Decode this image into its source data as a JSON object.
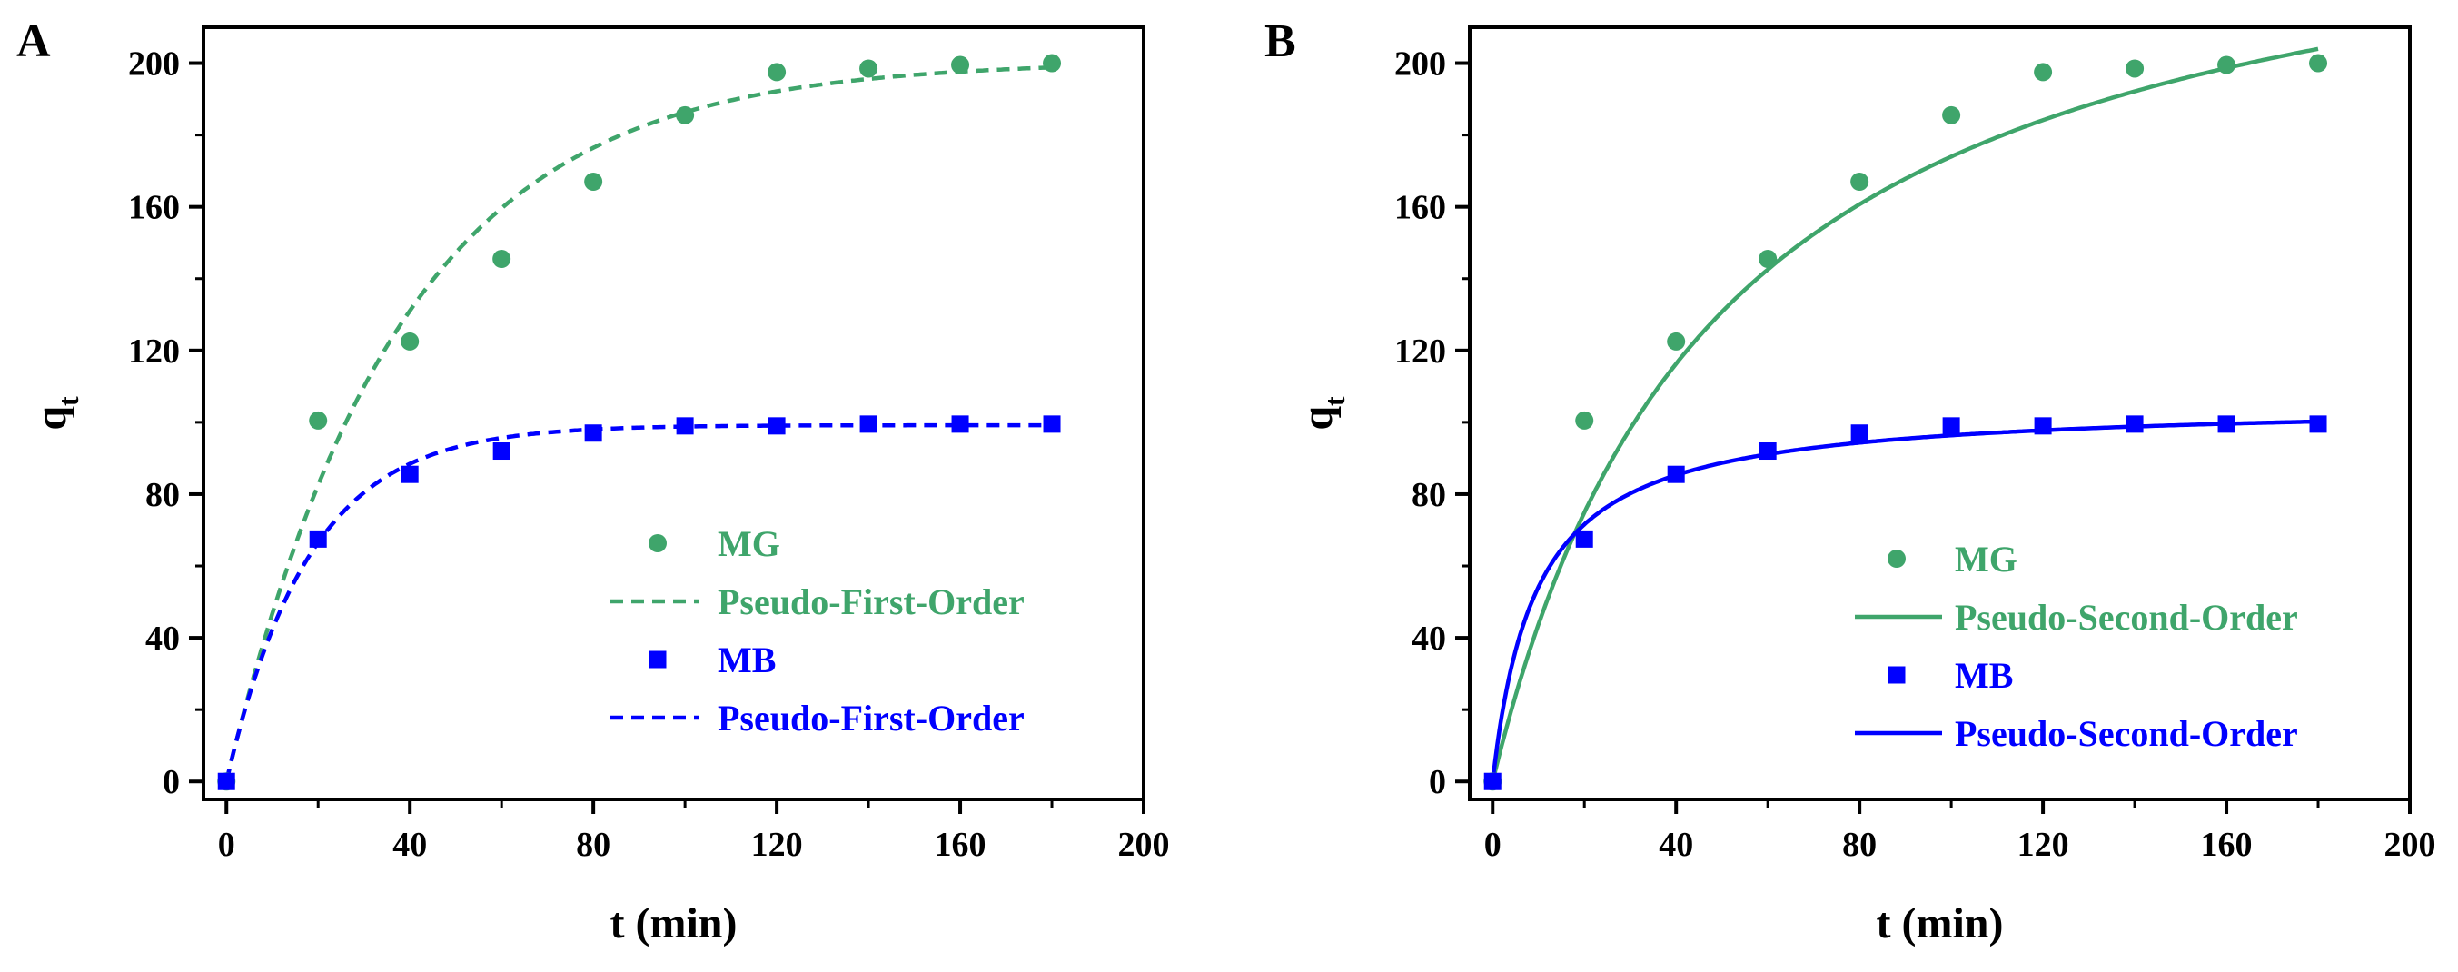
{
  "figure": {
    "panels": [
      "A",
      "B"
    ]
  },
  "chart_data": [
    {
      "panel": "A",
      "type": "scatter",
      "xlabel": "t (min)",
      "ylabel": "q",
      "ylabel_subscript": "t",
      "xlim": [
        -5,
        200
      ],
      "ylim": [
        -5,
        210
      ],
      "xticks": [
        0,
        40,
        80,
        120,
        160,
        200
      ],
      "yticks": [
        0,
        40,
        80,
        120,
        160,
        200
      ],
      "grid": false,
      "legend_position": "center-right",
      "series": [
        {
          "name": "MG",
          "kind": "points",
          "marker": "circle",
          "color": "#3fa56b",
          "x": [
            0,
            20,
            40,
            60,
            80,
            100,
            120,
            140,
            160,
            180
          ],
          "y": [
            0,
            100.5,
            122.5,
            145.5,
            167,
            185.5,
            197.5,
            198.5,
            199.5,
            200
          ]
        },
        {
          "name": "Pseudo-First-Order",
          "kind": "fit",
          "model": "first-order",
          "qe": 200.5,
          "k": 0.0265,
          "dash": "dashed",
          "color": "#3fa56b"
        },
        {
          "name": "MB",
          "kind": "points",
          "marker": "square",
          "color": "#0000ff",
          "x": [
            0,
            20,
            40,
            60,
            80,
            100,
            120,
            140,
            160,
            180
          ],
          "y": [
            0,
            67.5,
            85.5,
            92,
            97,
            99,
            99,
            99.5,
            99.5,
            99.5
          ]
        },
        {
          "name": "Pseudo-First-Order",
          "kind": "fit",
          "model": "first-order",
          "qe": 99.2,
          "k": 0.0555,
          "dash": "dashed",
          "color": "#0000ff"
        }
      ]
    },
    {
      "panel": "B",
      "type": "scatter",
      "xlabel": "t (min)",
      "ylabel": "q",
      "ylabel_subscript": "t",
      "xlim": [
        -5,
        200
      ],
      "ylim": [
        -5,
        210
      ],
      "xticks": [
        0,
        40,
        80,
        120,
        160,
        200
      ],
      "yticks": [
        0,
        40,
        80,
        120,
        160,
        200
      ],
      "grid": false,
      "legend_position": "center-right",
      "series": [
        {
          "name": "MG",
          "kind": "points",
          "marker": "circle",
          "color": "#3fa56b",
          "x": [
            0,
            20,
            40,
            60,
            80,
            100,
            120,
            140,
            160,
            180
          ],
          "y": [
            0,
            100.5,
            122.5,
            145.5,
            167,
            185.5,
            197.5,
            198.5,
            199.5,
            200
          ]
        },
        {
          "name": "Pseudo-Second-Order",
          "kind": "fit",
          "model": "second-order",
          "qe": 260,
          "k": 7.78e-05,
          "dash": "solid",
          "color": "#3fa56b"
        },
        {
          "name": "MB",
          "kind": "points",
          "marker": "square",
          "color": "#0000ff",
          "x": [
            0,
            20,
            40,
            60,
            80,
            100,
            120,
            140,
            160,
            180
          ],
          "y": [
            0,
            67.5,
            85.5,
            92,
            97,
            99,
            99,
            99.5,
            99.5,
            99.5
          ]
        },
        {
          "name": "Pseudo-Second-Order",
          "kind": "fit",
          "model": "second-order",
          "qe": 105.5,
          "k": 0.001,
          "dash": "solid",
          "color": "#0000ff"
        }
      ]
    }
  ]
}
